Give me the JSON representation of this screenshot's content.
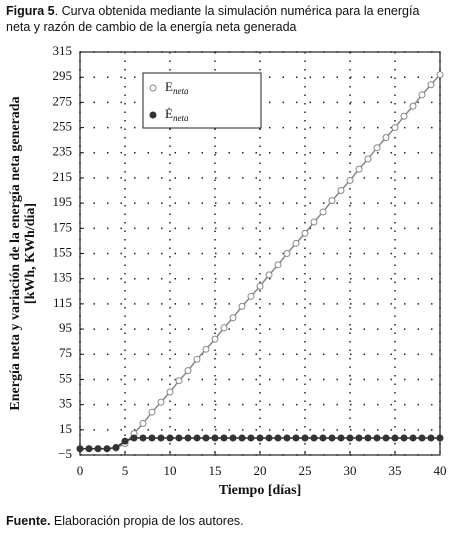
{
  "caption": {
    "label": "Figura 5",
    "text": ". Curva obtenida mediante la simulación numérica para la energía neta y razón de cambio de la energía neta generada"
  },
  "source": {
    "label": "Fuente.",
    "text": " Elaboración propia de los autores."
  },
  "chart_data": {
    "type": "line",
    "x_label": "Tiempo [días]",
    "y_label": [
      "Energía neta y variación de la energía neta generada",
      "[kWh, KWh/día]"
    ],
    "x": [
      0,
      1,
      2,
      3,
      4,
      5,
      6,
      7,
      8,
      9,
      10,
      11,
      12,
      13,
      14,
      15,
      16,
      17,
      18,
      19,
      20,
      21,
      22,
      23,
      24,
      25,
      26,
      27,
      28,
      29,
      30,
      31,
      32,
      33,
      34,
      35,
      36,
      37,
      38,
      39,
      40
    ],
    "series": [
      {
        "name": "Eneta",
        "color": "#888888",
        "marker": "open",
        "values": [
          0,
          0,
          0,
          0,
          0.5,
          4,
          12,
          20,
          29,
          37,
          45,
          54,
          62,
          71,
          79,
          87,
          96,
          104,
          113,
          121,
          129,
          138,
          146,
          155,
          163,
          171,
          180,
          188,
          197,
          205,
          213,
          222,
          230,
          239,
          247,
          255,
          264,
          272,
          281,
          289,
          297
        ]
      },
      {
        "name": "Ėneta",
        "color": "#333333",
        "marker": "filled",
        "values": [
          0,
          0,
          0,
          0,
          1,
          6,
          8.5,
          8.5,
          8.5,
          8.5,
          8.5,
          8.5,
          8.5,
          8.5,
          8.5,
          8.5,
          8.5,
          8.5,
          8.5,
          8.5,
          8.5,
          8.5,
          8.5,
          8.5,
          8.5,
          8.5,
          8.5,
          8.5,
          8.5,
          8.5,
          8.5,
          8.5,
          8.5,
          8.5,
          8.5,
          8.5,
          8.5,
          8.5,
          8.5,
          8.5,
          8.5
        ]
      }
    ],
    "xlim": [
      0,
      40
    ],
    "xticks": [
      0,
      5,
      10,
      15,
      20,
      25,
      30,
      35,
      40
    ],
    "ylim": [
      -5,
      315
    ],
    "yticks": [
      {
        "value": -5,
        "label": "−5"
      },
      15,
      35,
      55,
      75,
      95,
      115,
      135,
      155,
      175,
      195,
      215,
      235,
      255,
      275,
      295,
      315
    ],
    "grid": true,
    "legend": "upper left"
  }
}
